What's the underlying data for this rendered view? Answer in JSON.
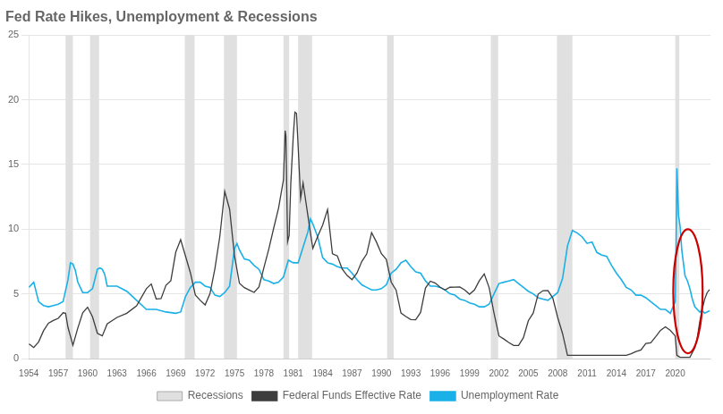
{
  "chart_data": {
    "type": "line",
    "title": "Fed Rate Hikes, Unemployment & Recessions",
    "series": [
      {
        "name": "Federal Funds Effective Rate",
        "color": "#3d3d3d",
        "x": [
          1954.0,
          1954.25,
          1954.5,
          1955.0,
          1955.5,
          1956.0,
          1956.5,
          1957.0,
          1957.5,
          1957.75,
          1958.0,
          1958.5,
          1959.0,
          1959.5,
          1960.0,
          1960.5,
          1961.0,
          1961.5,
          1962.0,
          1963.0,
          1964.0,
          1965.0,
          1966.0,
          1966.5,
          1967.0,
          1967.5,
          1968.0,
          1968.5,
          1969.0,
          1969.5,
          1970.0,
          1970.5,
          1971.0,
          1971.5,
          1972.0,
          1972.5,
          1973.0,
          1973.5,
          1974.0,
          1974.5,
          1975.0,
          1975.5,
          1976.0,
          1976.5,
          1977.0,
          1977.5,
          1978.0,
          1978.5,
          1979.0,
          1979.5,
          1980.0,
          1980.17,
          1980.25,
          1980.42,
          1980.58,
          1980.75,
          1981.0,
          1981.17,
          1981.33,
          1981.5,
          1981.75,
          1982.0,
          1982.5,
          1982.75,
          1983.0,
          1983.5,
          1984.0,
          1984.5,
          1985.0,
          1985.5,
          1986.0,
          1986.5,
          1987.0,
          1987.5,
          1988.0,
          1988.5,
          1989.0,
          1989.5,
          1990.0,
          1990.5,
          1991.0,
          1991.5,
          1992.0,
          1992.5,
          1993.0,
          1993.5,
          1994.0,
          1994.5,
          1995.0,
          1995.5,
          1996.0,
          1996.5,
          1997.0,
          1997.5,
          1998.0,
          1998.5,
          1999.0,
          1999.5,
          2000.0,
          2000.5,
          2001.0,
          2001.5,
          2002.0,
          2002.5,
          2003.0,
          2003.5,
          2004.0,
          2004.5,
          2005.0,
          2005.5,
          2006.0,
          2006.5,
          2007.0,
          2007.5,
          2008.0,
          2008.5,
          2009.0,
          2009.5,
          2010.0,
          2011.0,
          2012.0,
          2013.0,
          2014.0,
          2015.0,
          2015.5,
          2016.0,
          2016.5,
          2017.0,
          2017.5,
          2018.0,
          2018.5,
          2019.0,
          2019.5,
          2020.0,
          2020.17,
          2020.5,
          2021.0,
          2021.5,
          2022.0,
          2022.25,
          2022.5,
          2022.75,
          2023.0,
          2023.25,
          2023.5
        ],
        "values": [
          1.13,
          1.0,
          0.85,
          1.29,
          2.15,
          2.73,
          2.94,
          3.11,
          3.54,
          3.5,
          2.4,
          1.03,
          2.36,
          3.53,
          3.97,
          3.23,
          1.95,
          1.75,
          2.68,
          3.18,
          3.5,
          4.07,
          5.4,
          5.76,
          4.61,
          4.63,
          5.66,
          6.02,
          8.22,
          9.19,
          7.91,
          6.62,
          4.91,
          4.5,
          4.14,
          5.02,
          6.95,
          9.43,
          12.92,
          11.54,
          7.93,
          5.82,
          5.48,
          5.3,
          5.11,
          5.54,
          7.02,
          8.45,
          10.07,
          11.64,
          13.82,
          17.61,
          17.19,
          9.03,
          9.53,
          13.57,
          17.21,
          19.04,
          18.95,
          16.38,
          12.37,
          13.58,
          11.01,
          9.71,
          8.51,
          9.45,
          10.31,
          11.51,
          8.1,
          7.93,
          6.92,
          6.42,
          6.1,
          6.6,
          7.51,
          8.08,
          9.73,
          8.99,
          8.11,
          7.66,
          5.91,
          5.29,
          3.52,
          3.25,
          3.02,
          3.0,
          3.56,
          5.45,
          5.98,
          5.83,
          5.51,
          5.3,
          5.51,
          5.52,
          5.54,
          5.31,
          4.97,
          5.3,
          6.02,
          6.54,
          5.49,
          3.5,
          1.75,
          1.51,
          1.24,
          1.01,
          1.01,
          1.61,
          2.92,
          3.51,
          4.97,
          5.25,
          5.26,
          4.68,
          3.18,
          1.92,
          0.25,
          0.25,
          0.25,
          0.25,
          0.25,
          0.25,
          0.25,
          0.25,
          0.37,
          0.54,
          0.66,
          1.16,
          1.22,
          1.68,
          2.18,
          2.45,
          2.18,
          1.75,
          0.25,
          0.1,
          0.1,
          0.1,
          0.83,
          1.58,
          2.83,
          3.78,
          4.57,
          5.08,
          5.33
        ]
      },
      {
        "name": "Unemployment Rate",
        "color": "#1ab0e8",
        "x": [
          1954.0,
          1954.5,
          1955.0,
          1955.5,
          1956.0,
          1956.5,
          1957.0,
          1957.5,
          1958.0,
          1958.25,
          1958.5,
          1958.75,
          1959.0,
          1959.5,
          1960.0,
          1960.5,
          1961.0,
          1961.25,
          1961.5,
          1961.75,
          1962.0,
          1963.0,
          1964.0,
          1965.0,
          1966.0,
          1967.0,
          1968.0,
          1969.0,
          1969.5,
          1970.0,
          1970.5,
          1971.0,
          1971.5,
          1972.0,
          1972.5,
          1973.0,
          1973.5,
          1974.0,
          1974.5,
          1975.0,
          1975.25,
          1975.5,
          1976.0,
          1976.5,
          1977.0,
          1977.5,
          1978.0,
          1978.5,
          1979.0,
          1979.5,
          1980.0,
          1980.5,
          1981.0,
          1981.5,
          1982.0,
          1982.5,
          1982.75,
          1983.0,
          1983.5,
          1984.0,
          1984.5,
          1985.0,
          1985.5,
          1986.0,
          1986.5,
          1987.0,
          1987.5,
          1988.0,
          1988.5,
          1989.0,
          1989.5,
          1990.0,
          1990.5,
          1991.0,
          1991.5,
          1992.0,
          1992.5,
          1993.0,
          1993.5,
          1994.0,
          1994.5,
          1995.0,
          1995.5,
          1996.0,
          1996.5,
          1997.0,
          1997.5,
          1998.0,
          1998.5,
          1999.0,
          1999.5,
          2000.0,
          2000.5,
          2001.0,
          2001.5,
          2002.0,
          2002.5,
          2003.0,
          2003.5,
          2004.0,
          2004.5,
          2005.0,
          2005.5,
          2006.0,
          2006.5,
          2007.0,
          2007.5,
          2008.0,
          2008.5,
          2009.0,
          2009.5,
          2010.0,
          2010.5,
          2011.0,
          2011.5,
          2012.0,
          2012.5,
          2013.0,
          2013.5,
          2014.0,
          2014.5,
          2015.0,
          2015.5,
          2016.0,
          2016.5,
          2017.0,
          2017.5,
          2018.0,
          2018.5,
          2019.0,
          2019.5,
          2020.0,
          2020.08,
          2020.17,
          2020.25,
          2020.33,
          2020.5,
          2020.67,
          2020.75,
          2021.0,
          2021.25,
          2021.5,
          2021.75,
          2022.0,
          2022.25,
          2022.5,
          2022.75,
          2023.0,
          2023.5
        ],
        "values": [
          5.5,
          5.9,
          4.4,
          4.1,
          4.0,
          4.1,
          4.2,
          4.4,
          6.1,
          7.4,
          7.3,
          6.8,
          5.9,
          5.1,
          5.1,
          5.4,
          6.9,
          7.0,
          6.9,
          6.5,
          5.6,
          5.6,
          5.2,
          4.5,
          3.8,
          3.8,
          3.6,
          3.5,
          3.6,
          4.8,
          5.5,
          5.9,
          5.9,
          5.6,
          5.5,
          4.9,
          4.8,
          5.1,
          5.6,
          8.5,
          8.9,
          8.4,
          7.7,
          7.6,
          7.2,
          6.9,
          6.1,
          6.0,
          5.8,
          5.9,
          6.3,
          7.6,
          7.4,
          7.4,
          8.6,
          9.8,
          10.8,
          10.4,
          9.4,
          7.8,
          7.4,
          7.3,
          7.1,
          7.0,
          7.0,
          6.6,
          6.1,
          5.7,
          5.5,
          5.3,
          5.3,
          5.4,
          5.7,
          6.6,
          6.9,
          7.4,
          7.6,
          7.1,
          6.7,
          6.6,
          6.0,
          5.6,
          5.6,
          5.5,
          5.3,
          5.0,
          4.9,
          4.6,
          4.5,
          4.3,
          4.2,
          4.0,
          4.0,
          4.2,
          5.0,
          5.8,
          5.9,
          6.0,
          6.1,
          5.8,
          5.5,
          5.2,
          5.0,
          4.7,
          4.6,
          4.5,
          4.8,
          5.1,
          6.2,
          8.7,
          9.9,
          9.7,
          9.4,
          8.9,
          9.0,
          8.2,
          8.0,
          7.9,
          7.2,
          6.6,
          6.1,
          5.5,
          5.3,
          4.9,
          4.9,
          4.7,
          4.4,
          4.1,
          3.8,
          3.8,
          3.5,
          4.4,
          8.0,
          14.7,
          13.0,
          11.1,
          10.2,
          8.4,
          7.9,
          6.4,
          6.0,
          5.4,
          4.6,
          4.0,
          3.8,
          3.6,
          3.7,
          3.5,
          3.7
        ]
      }
    ],
    "recessions": {
      "name": "Recessions",
      "color": "#e0e0e0",
      "ranges": [
        [
          1957.75,
          1958.5
        ],
        [
          1960.25,
          1961.17
        ],
        [
          1969.92,
          1970.92
        ],
        [
          1973.92,
          1975.25
        ],
        [
          1980.0,
          1980.58
        ],
        [
          1981.5,
          1982.92
        ],
        [
          1990.58,
          1991.25
        ],
        [
          2001.17,
          2001.92
        ],
        [
          2007.92,
          2009.5
        ],
        [
          2020.0,
          2020.42
        ]
      ]
    },
    "annotations": [
      {
        "type": "ellipse",
        "center": [
          2021.3,
          5.2
        ],
        "rx": 1.5,
        "ry": 4.8,
        "color": "#cc0000"
      }
    ],
    "xlim": [
      1954,
      2023.6
    ],
    "xticks": [
      1954,
      1957,
      1960,
      1963,
      1966,
      1969,
      1972,
      1975,
      1978,
      1981,
      1984,
      1987,
      1990,
      1993,
      1996,
      1999,
      2002,
      2005,
      2008,
      2011,
      2014,
      2017,
      2020
    ],
    "ylim": [
      0,
      25
    ],
    "yticks": [
      0,
      5,
      10,
      15,
      20,
      25
    ],
    "grid": "y",
    "legend": "bottom"
  }
}
